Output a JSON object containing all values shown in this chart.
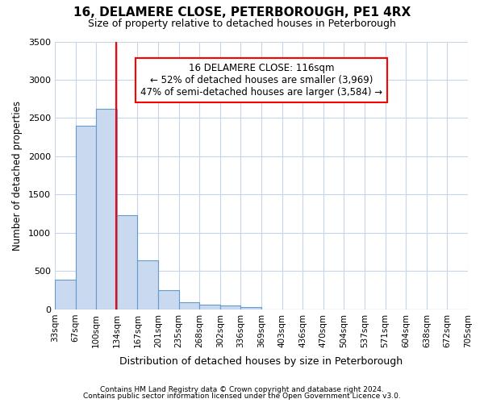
{
  "title": "16, DELAMERE CLOSE, PETERBOROUGH, PE1 4RX",
  "subtitle": "Size of property relative to detached houses in Peterborough",
  "xlabel": "Distribution of detached houses by size in Peterborough",
  "ylabel": "Number of detached properties",
  "footnote1": "Contains HM Land Registry data © Crown copyright and database right 2024.",
  "footnote2": "Contains public sector information licensed under the Open Government Licence v3.0.",
  "bin_labels": [
    "33sqm",
    "67sqm",
    "100sqm",
    "134sqm",
    "167sqm",
    "201sqm",
    "235sqm",
    "268sqm",
    "302sqm",
    "336sqm",
    "369sqm",
    "403sqm",
    "436sqm",
    "470sqm",
    "504sqm",
    "537sqm",
    "571sqm",
    "604sqm",
    "638sqm",
    "672sqm",
    "705sqm"
  ],
  "bar_values": [
    390,
    2400,
    2620,
    1230,
    640,
    250,
    95,
    60,
    50,
    30,
    0,
    0,
    0,
    0,
    0,
    0,
    0,
    0,
    0,
    0
  ],
  "bar_color": "#c8d9f0",
  "bar_edge_color": "#6699cc",
  "vline_color": "red",
  "vline_x": 2.485,
  "annotation_line1": "16 DELAMERE CLOSE: 116sqm",
  "annotation_line2": "← 52% of detached houses are smaller (3,969)",
  "annotation_line3": "47% of semi-detached houses are larger (3,584) →",
  "annotation_box_color": "white",
  "annotation_box_edge": "red",
  "ylim": [
    0,
    3500
  ],
  "yticks": [
    0,
    500,
    1000,
    1500,
    2000,
    2500,
    3000,
    3500
  ],
  "grid_color": "#c8d4e8",
  "background_color": "#ffffff",
  "plot_bg_color": "#ffffff"
}
